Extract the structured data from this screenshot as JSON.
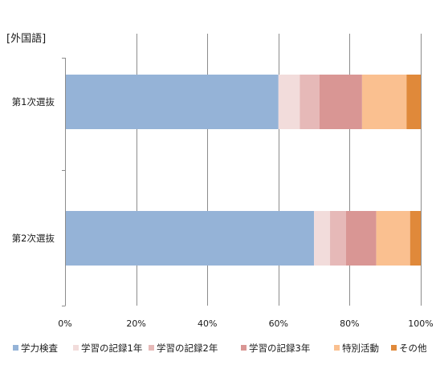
{
  "chart_data": {
    "type": "bar",
    "orientation": "horizontal",
    "stacked": "percent",
    "title": "[外国語]",
    "categories": [
      "第1次選抜",
      "第2次選抜"
    ],
    "series": [
      {
        "name": "学力検査",
        "color": "#95b3d7",
        "values": [
          60,
          70
        ]
      },
      {
        "name": "学習の記録1年",
        "color": "#f2dcdb",
        "values": [
          6,
          4.5
        ]
      },
      {
        "name": "学習の記録2年",
        "color": "#e6b9b8",
        "values": [
          5.5,
          4.5
        ]
      },
      {
        "name": "学習の記録3年",
        "color": "#d99694",
        "values": [
          12,
          8.5
        ]
      },
      {
        "name": "特別活動",
        "color": "#fac090",
        "values": [
          12.5,
          9.5
        ]
      },
      {
        "name": "その他",
        "color": "#e0893a",
        "values": [
          4,
          3
        ]
      }
    ],
    "xlim": [
      0,
      100
    ],
    "xticks": [
      "0%",
      "20%",
      "40%",
      "60%",
      "80%",
      "100%"
    ],
    "grid": true,
    "legend": "bottom"
  }
}
